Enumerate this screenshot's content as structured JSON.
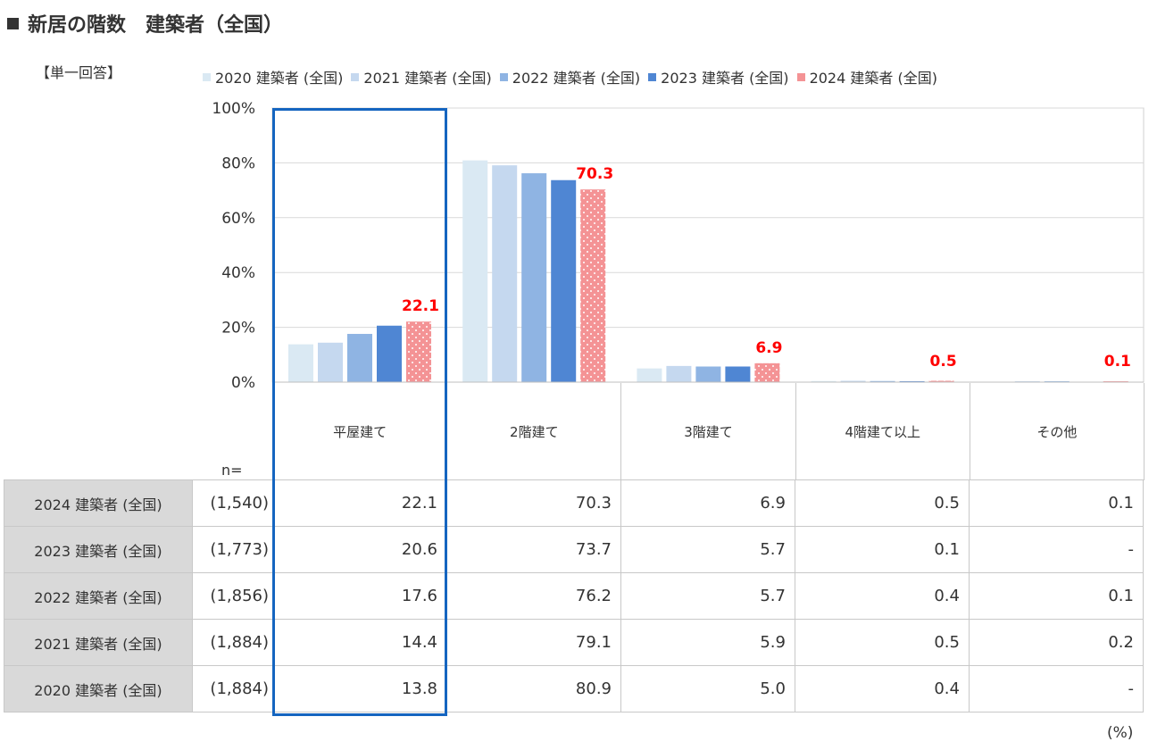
{
  "title": "新居の階数　建築者（全国）",
  "subtitle": "【単一回答】",
  "n_label": "n=",
  "unit_label": "(%)",
  "colors": {
    "s2020": "#dae9f3",
    "s2021": "#c5d8ef",
    "s2022": "#8fb4e3",
    "s2023": "#4f86d3",
    "s2024": "#f49395",
    "highlight": "#1565c0",
    "label_red": "#ff0000"
  },
  "chart_data": {
    "type": "bar",
    "categories": [
      "平屋建て",
      "2階建て",
      "3階建て",
      "4階建て以上",
      "その他"
    ],
    "series": [
      {
        "name": "2020 建築者 (全国)",
        "values": [
          13.8,
          80.9,
          5.0,
          0.4,
          null
        ]
      },
      {
        "name": "2021 建築者 (全国)",
        "values": [
          14.4,
          79.1,
          5.9,
          0.5,
          0.2
        ]
      },
      {
        "name": "2022 建築者 (全国)",
        "values": [
          17.6,
          76.2,
          5.7,
          0.4,
          0.1
        ]
      },
      {
        "name": "2023 建築者 (全国)",
        "values": [
          20.6,
          73.7,
          5.7,
          0.1,
          null
        ]
      },
      {
        "name": "2024 建築者 (全国)",
        "values": [
          22.1,
          70.3,
          6.9,
          0.5,
          0.1
        ]
      }
    ],
    "data_labels": [
      "22.1",
      "70.3",
      "6.9",
      "0.5",
      "0.1"
    ],
    "y_ticks": [
      "100%",
      "80%",
      "60%",
      "40%",
      "20%",
      "0%"
    ],
    "ylim": [
      0,
      100
    ],
    "grid": true,
    "legend_position": "top"
  },
  "table": {
    "rows": [
      {
        "label": "2024 建築者 (全国)",
        "n": "(1,540)",
        "values": [
          "22.1",
          "70.3",
          "6.9",
          "0.5",
          "0.1"
        ]
      },
      {
        "label": "2023 建築者 (全国)",
        "n": "(1,773)",
        "values": [
          "20.6",
          "73.7",
          "5.7",
          "0.1",
          "-"
        ]
      },
      {
        "label": "2022 建築者 (全国)",
        "n": "(1,856)",
        "values": [
          "17.6",
          "76.2",
          "5.7",
          "0.4",
          "0.1"
        ]
      },
      {
        "label": "2021 建築者 (全国)",
        "n": "(1,884)",
        "values": [
          "14.4",
          "79.1",
          "5.9",
          "0.5",
          "0.2"
        ]
      },
      {
        "label": "2020 建築者 (全国)",
        "n": "(1,884)",
        "values": [
          "13.8",
          "80.9",
          "5.0",
          "0.4",
          "-"
        ]
      }
    ]
  }
}
